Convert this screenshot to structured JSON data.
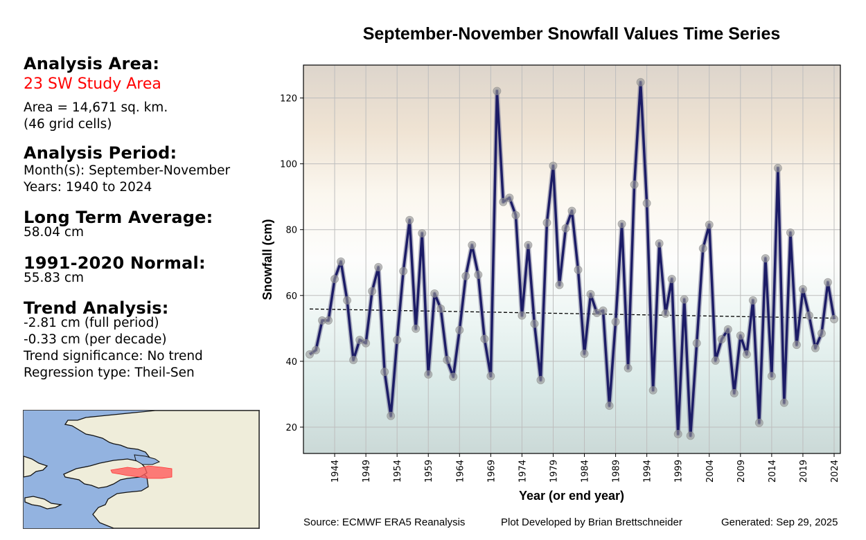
{
  "info_panel": {
    "analysis_area_heading": "Analysis Area:",
    "area_name": "23 SW Study Area",
    "area_size": "Area = 14,671 sq. km.",
    "grid_cells": "(46 grid cells)",
    "analysis_period_heading": "Analysis Period:",
    "months": "Month(s): September-November",
    "years": "Years: 1940 to 2024",
    "long_term_average_heading": "Long Term Average:",
    "long_term_average_value": "58.04 cm",
    "normal_heading": "1991-2020 Normal:",
    "normal_value": "55.83 cm",
    "trend_heading": "Trend Analysis:",
    "trend_full_period": "-2.81 cm (full period)",
    "trend_per_decade": "-0.33 cm (per decade)",
    "trend_significance": "Trend significance: No trend",
    "regression_type": "Regression type: Theil-Sen"
  },
  "map": {
    "ocean_color": "#93b3e0",
    "land_color": "#efedda",
    "study_area_color": "#ff5c5c"
  },
  "footer": {
    "source": "Source: ECMWF ERA5 Reanalysis",
    "credit": "Plot Developed by Brian Brettschneider",
    "generated": "Generated: Sep 29, 2025"
  },
  "chart_data": {
    "type": "line",
    "title": "September-November Snowfall Values Time Series",
    "xlabel": "Year (or end year)",
    "ylabel": "Snowfall (cm)",
    "xlim": [
      1939,
      2025
    ],
    "ylim": [
      12,
      130
    ],
    "grid": true,
    "x_ticks": [
      1944,
      1949,
      1954,
      1959,
      1964,
      1969,
      1974,
      1979,
      1984,
      1989,
      1994,
      1999,
      2004,
      2009,
      2014,
      2019,
      2024
    ],
    "y_ticks": [
      20,
      40,
      60,
      80,
      100,
      120
    ],
    "line_color": "#1c1c66",
    "marker_color": "#9a9a9a",
    "x": [
      1940,
      1941,
      1942,
      1943,
      1944,
      1945,
      1946,
      1947,
      1948,
      1949,
      1950,
      1951,
      1952,
      1953,
      1954,
      1955,
      1956,
      1957,
      1958,
      1959,
      1960,
      1961,
      1962,
      1963,
      1964,
      1965,
      1966,
      1967,
      1968,
      1969,
      1970,
      1971,
      1972,
      1973,
      1974,
      1975,
      1976,
      1977,
      1978,
      1979,
      1980,
      1981,
      1982,
      1983,
      1984,
      1985,
      1986,
      1987,
      1988,
      1989,
      1990,
      1991,
      1992,
      1993,
      1994,
      1995,
      1996,
      1997,
      1998,
      1999,
      2000,
      2001,
      2002,
      2003,
      2004,
      2005,
      2006,
      2007,
      2008,
      2009,
      2010,
      2011,
      2012,
      2013,
      2014,
      2015,
      2016,
      2017,
      2018,
      2019,
      2020,
      2021,
      2022,
      2023,
      2024
    ],
    "series": [
      {
        "name": "Snowfall",
        "values": [
          42.1,
          43.4,
          52.4,
          52.4,
          65.0,
          70.3,
          58.5,
          40.4,
          46.5,
          45.5,
          61.3,
          68.6,
          36.8,
          23.4,
          46.5,
          67.4,
          82.9,
          49.9,
          78.9,
          36.0,
          60.6,
          56.0,
          40.4,
          35.3,
          49.5,
          65.9,
          75.3,
          66.3,
          46.8,
          35.5,
          122.1,
          88.4,
          89.7,
          84.4,
          53.9,
          75.3,
          51.4,
          34.3,
          82.1,
          99.4,
          63.2,
          80.4,
          85.7,
          67.8,
          42.3,
          60.4,
          54.7,
          55.4,
          26.5,
          52.0,
          81.7,
          37.9,
          93.7,
          124.8,
          88.0,
          31.2,
          75.8,
          54.5,
          65.0,
          17.9,
          58.8,
          17.4,
          45.5,
          74.3,
          81.5,
          40.2,
          46.7,
          49.7,
          30.3,
          47.8,
          42.1,
          58.5,
          21.3,
          71.3,
          35.5,
          98.7,
          27.4,
          79.1,
          45.0,
          61.9,
          53.9,
          44.0,
          48.5,
          64.0,
          52.8
        ]
      }
    ],
    "trend_line": {
      "name": "Theil-Sen trend",
      "style": "dashed",
      "x": [
        1940,
        2024
      ],
      "y": [
        55.9,
        53.1
      ]
    },
    "background_gradient": [
      "#ddd5cc",
      "#efe3d3",
      "#fbf7ef",
      "#fdfdfc",
      "#ecf5f3",
      "#d9e9e7",
      "#cbd9d7"
    ],
    "annotations": [
      "Source: ECMWF ERA5 Reanalysis",
      "Plot Developed by Brian Brettschneider",
      "Generated: Sep 29, 2025"
    ]
  }
}
